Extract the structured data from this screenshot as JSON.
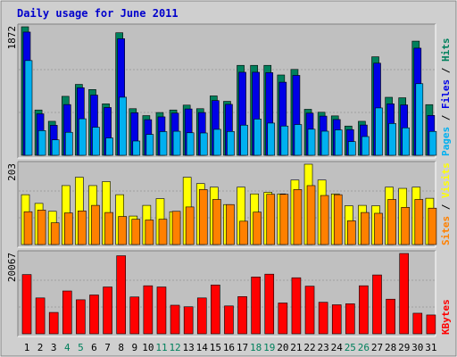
{
  "title": "Daily usage for June 2011",
  "colors": {
    "outer_bg": "#ffffff",
    "frame_bg": "#cfcfcf",
    "panel_bg": "#c0c0c0",
    "border_dark": "#808080",
    "border_light": "#ffffff",
    "title_color": "#0000cc",
    "hits": "#00805c",
    "files": "#0000e6",
    "pages": "#00b0f0",
    "visits": "#ffff00",
    "sites": "#ff8000",
    "kbytes": "#ff0000",
    "weekend_label": "#00805c",
    "weekday_label": "#000000"
  },
  "chart_data": [
    {
      "type": "bar",
      "title": "Daily usage for June 2011",
      "panel": "top",
      "y_max_label": "1872",
      "ylim": [
        0,
        1872
      ],
      "legend_placement": "right",
      "legend_parts": [
        "Pages",
        "Files",
        "Hits"
      ],
      "legend_separator": " / ",
      "categories": [
        "1",
        "2",
        "3",
        "4",
        "5",
        "6",
        "7",
        "8",
        "9",
        "10",
        "11",
        "12",
        "13",
        "14",
        "15",
        "16",
        "17",
        "18",
        "19",
        "20",
        "21",
        "22",
        "23",
        "24",
        "25",
        "26",
        "27",
        "28",
        "29",
        "30",
        "31"
      ],
      "series": [
        {
          "name": "Hits",
          "values": [
            1872,
            660,
            495,
            859,
            1033,
            958,
            750,
            1785,
            679,
            578,
            623,
            660,
            731,
            679,
            865,
            786,
            1310,
            1310,
            1310,
            1170,
            1251,
            670,
            627,
            574,
            426,
            495,
            1435,
            845,
            838,
            1663,
            738
          ]
        },
        {
          "name": "Files",
          "values": [
            1795,
            604,
            437,
            739,
            984,
            877,
            696,
            1698,
            620,
            519,
            560,
            614,
            675,
            623,
            797,
            742,
            1210,
            1210,
            1204,
            1065,
            1164,
            614,
            571,
            521,
            374,
            441,
            1342,
            750,
            734,
            1561,
            581
          ]
        },
        {
          "name": "Pages",
          "values": [
            1380,
            360,
            225,
            335,
            532,
            409,
            253,
            846,
            208,
            304,
            345,
            350,
            328,
            325,
            378,
            347,
            439,
            528,
            469,
            426,
            448,
            380,
            351,
            370,
            200,
            273,
            690,
            463,
            400,
            1043,
            348
          ]
        }
      ]
    },
    {
      "type": "bar",
      "panel": "middle",
      "y_max_label": "203",
      "ylim": [
        0,
        203
      ],
      "legend_placement": "right",
      "legend_parts": [
        "Sites",
        "Visits"
      ],
      "legend_separator": " / ",
      "categories": [
        "1",
        "2",
        "3",
        "4",
        "5",
        "6",
        "7",
        "8",
        "9",
        "10",
        "11",
        "12",
        "13",
        "14",
        "15",
        "16",
        "17",
        "18",
        "19",
        "20",
        "21",
        "22",
        "23",
        "24",
        "25",
        "26",
        "27",
        "28",
        "29",
        "30",
        "31"
      ],
      "series": [
        {
          "name": "Visits",
          "values": [
            126,
            104,
            84,
            149,
            170,
            149,
            159,
            126,
            72,
            99,
            116,
            83,
            170,
            154,
            145,
            101,
            145,
            128,
            132,
            128,
            163,
            203,
            163,
            128,
            98,
            99,
            98,
            145,
            142,
            145,
            117
          ]
        },
        {
          "name": "Sites",
          "values": [
            83,
            87,
            55,
            80,
            85,
            99,
            81,
            71,
            64,
            62,
            64,
            84,
            95,
            139,
            114,
            101,
            59,
            82,
            127,
            127,
            139,
            149,
            124,
            126,
            60,
            81,
            79,
            114,
            94,
            114,
            92
          ]
        }
      ]
    },
    {
      "type": "bar",
      "panel": "bottom",
      "y_max_label": "20067",
      "ylim": [
        0,
        20067
      ],
      "legend_placement": "right",
      "legend_parts": [
        "KBytes"
      ],
      "legend_separator": "",
      "categories": [
        "1",
        "2",
        "3",
        "4",
        "5",
        "6",
        "7",
        "8",
        "9",
        "10",
        "11",
        "12",
        "13",
        "14",
        "15",
        "16",
        "17",
        "18",
        "19",
        "20",
        "21",
        "22",
        "23",
        "24",
        "25",
        "26",
        "27",
        "28",
        "29",
        "30",
        "31"
      ],
      "series": [
        {
          "name": "KBytes",
          "values": [
            14800,
            8960,
            5340,
            10700,
            8500,
            9700,
            11700,
            19500,
            9200,
            12000,
            11700,
            7140,
            6750,
            8960,
            12200,
            6960,
            9300,
            14200,
            14900,
            7700,
            14000,
            11900,
            7880,
            7250,
            7500,
            12000,
            14700,
            8650,
            20067,
            5140,
            4700
          ]
        }
      ]
    }
  ],
  "x_labels": [
    "1",
    "2",
    "3",
    "4",
    "5",
    "6",
    "7",
    "8",
    "9",
    "10",
    "11",
    "12",
    "13",
    "14",
    "15",
    "16",
    "17",
    "18",
    "19",
    "20",
    "21",
    "22",
    "23",
    "24",
    "25",
    "26",
    "27",
    "28",
    "29",
    "30",
    "31"
  ],
  "weekend_days": [
    4,
    5,
    11,
    12,
    18,
    19,
    25,
    26
  ]
}
